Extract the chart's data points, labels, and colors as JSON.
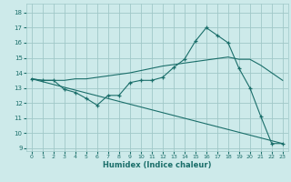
{
  "xlabel": "Humidex (Indice chaleur)",
  "xlim": [
    -0.5,
    23.5
  ],
  "ylim": [
    8.8,
    18.6
  ],
  "yticks": [
    9,
    10,
    11,
    12,
    13,
    14,
    15,
    16,
    17,
    18
  ],
  "xticks": [
    0,
    1,
    2,
    3,
    4,
    5,
    6,
    7,
    8,
    9,
    10,
    11,
    12,
    13,
    14,
    15,
    16,
    17,
    18,
    19,
    20,
    21,
    22,
    23
  ],
  "bg_color": "#cdeaea",
  "grid_color": "#a0c8c8",
  "line_color": "#1a6e6a",
  "line1_x": [
    0,
    1,
    2,
    3,
    4,
    5,
    6,
    7,
    8,
    9,
    10,
    11,
    12,
    13,
    14,
    15,
    16,
    17,
    18,
    19,
    20,
    21,
    22,
    23
  ],
  "line1_y": [
    13.6,
    13.5,
    13.5,
    12.9,
    12.7,
    12.3,
    11.85,
    12.5,
    12.5,
    13.35,
    13.5,
    13.5,
    13.7,
    14.35,
    14.9,
    16.1,
    17.0,
    16.5,
    16.0,
    14.3,
    13.0,
    11.1,
    9.3,
    9.3
  ],
  "line2_x": [
    0,
    23
  ],
  "line2_y": [
    13.6,
    9.3
  ],
  "line3_x": [
    0,
    1,
    2,
    3,
    4,
    5,
    6,
    7,
    8,
    9,
    10,
    11,
    12,
    13,
    14,
    15,
    16,
    17,
    18,
    19,
    20,
    21,
    22,
    23
  ],
  "line3_y": [
    13.6,
    13.5,
    13.5,
    13.5,
    13.6,
    13.6,
    13.7,
    13.8,
    13.9,
    14.0,
    14.15,
    14.3,
    14.45,
    14.55,
    14.65,
    14.75,
    14.85,
    14.95,
    15.05,
    14.9,
    14.9,
    14.5,
    14.0,
    13.5
  ]
}
